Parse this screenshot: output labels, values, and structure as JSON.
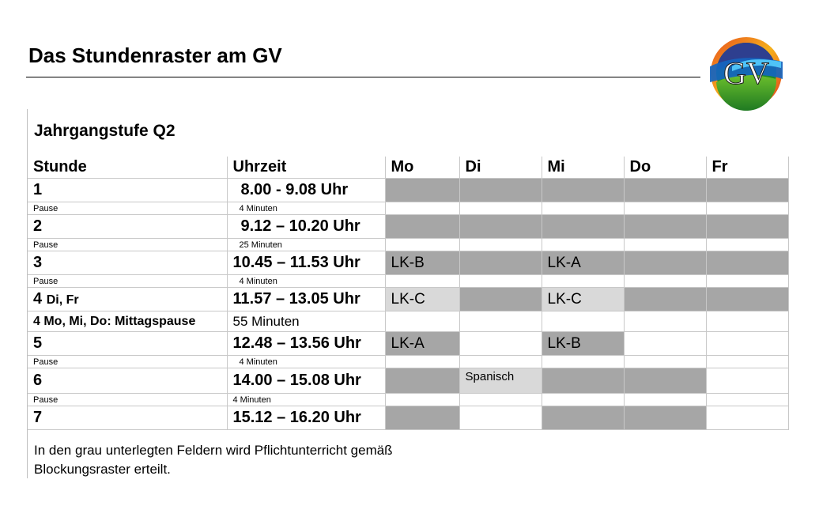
{
  "document": {
    "title": "Das Stundenraster am GV",
    "logo_text": "GV",
    "section_heading": "Jahrgangstufe Q2",
    "footnote_line1": "In den grau unterlegten Feldern wird Pflichtunterricht gemäß",
    "footnote_line2": "Blockungsraster erteilt."
  },
  "colors": {
    "grey_cell": "#a6a6a6",
    "light_grey_cell": "#d9d9d9",
    "grid_line": "#c8c8c8"
  },
  "table": {
    "headers": [
      "Stunde",
      "Uhrzeit",
      "Mo",
      "Di",
      "Mi",
      "Do",
      "Fr"
    ],
    "rows": [
      {
        "kind": "lesson",
        "stunde": "1",
        "zeit": "8.00 - 9.08 Uhr"
      },
      {
        "kind": "pause",
        "stunde": "Pause",
        "zeit": "4 Minuten"
      },
      {
        "kind": "lesson",
        "stunde": "2",
        "zeit": "9.12 – 10.20 Uhr"
      },
      {
        "kind": "pause",
        "stunde": "Pause",
        "zeit": "25 Minuten"
      },
      {
        "kind": "lesson",
        "stunde": "3",
        "zeit": "10.45 – 11.53 Uhr",
        "mo": "LK-B",
        "mi": "LK-A"
      },
      {
        "kind": "pause",
        "stunde": "Pause",
        "zeit": "4 Minuten"
      },
      {
        "kind": "lesson",
        "stunde": "4",
        "stunde_suffix": "Di, Fr",
        "zeit": "11.57 – 13.05 Uhr",
        "mo": "LK-C",
        "mi": "LK-C"
      },
      {
        "kind": "lunch",
        "stunde": "4 Mo, Mi, Do: Mittagspause",
        "zeit": "55 Minuten"
      },
      {
        "kind": "lesson",
        "stunde": "5",
        "zeit": "12.48 – 13.56 Uhr",
        "mo": "LK-A",
        "mi": "LK-B"
      },
      {
        "kind": "pause",
        "stunde": "Pause",
        "zeit": "4 Minuten"
      },
      {
        "kind": "lesson",
        "stunde": "6",
        "zeit": "14.00 – 15.08 Uhr",
        "di": "Spanisch"
      },
      {
        "kind": "pause",
        "stunde": "Pause",
        "zeit": "4 Minuten"
      },
      {
        "kind": "lesson",
        "stunde": "7",
        "zeit": "15.12 – 16.20 Uhr"
      }
    ]
  }
}
